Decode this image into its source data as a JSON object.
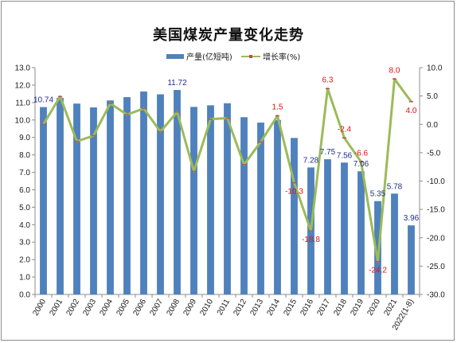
{
  "chart_data": {
    "type": "bar",
    "title": "美国煤炭产量变化走势",
    "categories": [
      "2000",
      "2001",
      "2002",
      "2003",
      "2004",
      "2005",
      "2006",
      "2007",
      "2008",
      "2009",
      "2010",
      "2011",
      "2012",
      "2013",
      "2014",
      "2015",
      "2016",
      "2017",
      "2018",
      "2019",
      "2020",
      "2021",
      "2022(1-8)"
    ],
    "series": [
      {
        "name": "产量(亿短吨)",
        "type": "bar",
        "axis": "left",
        "color": "#4f81bd",
        "values": [
          10.74,
          11.27,
          10.94,
          10.72,
          11.12,
          11.31,
          11.63,
          11.47,
          11.72,
          10.75,
          10.84,
          10.96,
          10.16,
          9.85,
          10.0,
          8.97,
          7.28,
          7.75,
          7.56,
          7.06,
          5.35,
          5.78,
          3.96
        ]
      },
      {
        "name": "增长率(%)",
        "type": "line",
        "axis": "right",
        "color": "#9bbb59",
        "marker_color": "#c0504d",
        "values": [
          0.0,
          4.9,
          -3.0,
          -2.0,
          3.7,
          1.7,
          2.8,
          -1.3,
          2.2,
          -8.3,
          0.9,
          1.1,
          -7.1,
          -3.1,
          1.5,
          -10.3,
          -18.8,
          6.3,
          -2.4,
          -6.6,
          -24.2,
          8.0,
          4.0
        ]
      }
    ],
    "y_left": {
      "ylim": [
        0,
        13
      ],
      "ticks": [
        "0.0",
        "1.0",
        "2.0",
        "3.0",
        "4.0",
        "5.0",
        "6.0",
        "7.0",
        "8.0",
        "9.0",
        "10.0",
        "11.0",
        "12.0",
        "13.0"
      ]
    },
    "y_right": {
      "ylim": [
        -30,
        10
      ],
      "ticks": [
        "-30.0",
        "-25.0",
        "-20.0",
        "-15.0",
        "-10.0",
        "-5.0",
        "0.0",
        "5.0",
        "10.0"
      ]
    },
    "bar_labels": [
      {
        "index": 0,
        "text": "10.74"
      },
      {
        "index": 8,
        "text": "11.72"
      },
      {
        "index": 16,
        "text": "7.28"
      },
      {
        "index": 17,
        "text": "7.75"
      },
      {
        "index": 18,
        "text": "7.56"
      },
      {
        "index": 19,
        "text": "7.06"
      },
      {
        "index": 20,
        "text": "5.35"
      },
      {
        "index": 21,
        "text": "5.78"
      },
      {
        "index": 22,
        "text": "3.96"
      }
    ],
    "line_labels": [
      {
        "index": 14,
        "text": "1.5"
      },
      {
        "index": 15,
        "text": "-10.3"
      },
      {
        "index": 16,
        "text": "-18.8"
      },
      {
        "index": 17,
        "text": "6.3"
      },
      {
        "index": 18,
        "text": "-2.4"
      },
      {
        "index": 19,
        "text": "-6.6"
      },
      {
        "index": 20,
        "text": "-24.2"
      },
      {
        "index": 21,
        "text": "8.0"
      },
      {
        "index": 22,
        "text": "4.0"
      }
    ],
    "legend": {
      "placement": "top-center"
    },
    "grid": false
  }
}
